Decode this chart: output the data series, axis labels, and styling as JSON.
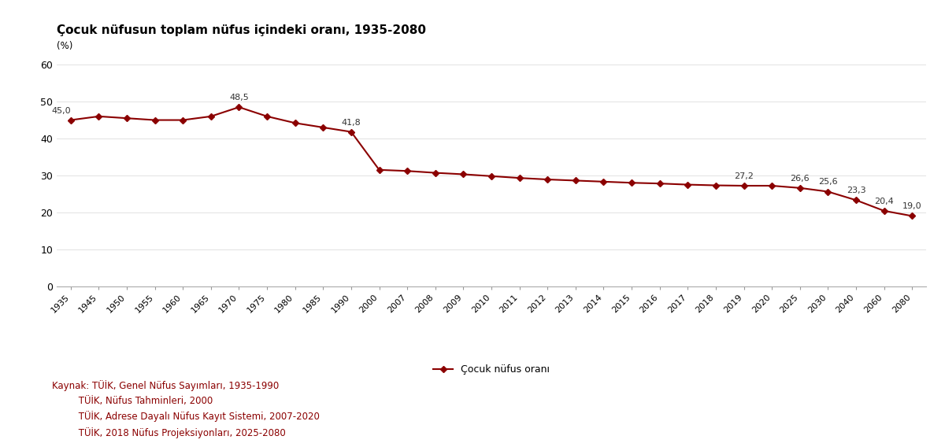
{
  "title": "Çocuk nüfusun toplam nüfus içindeki oranı, 1935-2080",
  "ylabel": "(%)",
  "legend_label": "Çocuk nüfus oranı",
  "line_color": "#8B0000",
  "marker": "D",
  "marker_size": 4,
  "years": [
    1935,
    1945,
    1950,
    1955,
    1960,
    1965,
    1970,
    1975,
    1980,
    1985,
    1990,
    2000,
    2007,
    2008,
    2009,
    2010,
    2011,
    2012,
    2013,
    2014,
    2015,
    2016,
    2017,
    2018,
    2019,
    2020,
    2025,
    2030,
    2040,
    2060,
    2080
  ],
  "values": [
    45.0,
    46.0,
    45.5,
    45.0,
    45.0,
    46.0,
    48.5,
    46.0,
    44.2,
    43.0,
    41.8,
    31.5,
    31.2,
    30.7,
    30.3,
    29.8,
    29.3,
    28.9,
    28.6,
    28.3,
    28.0,
    27.8,
    27.5,
    27.3,
    27.2,
    27.2,
    26.6,
    25.6,
    23.3,
    20.4,
    19.0
  ],
  "labeled_points": {
    "0": "45,0",
    "6": "48,5",
    "10": "41,8",
    "24": "27,2",
    "26": "26,6",
    "27": "25,6",
    "28": "23,3",
    "29": "20,4",
    "30": "19,0"
  },
  "ylim": [
    0,
    63
  ],
  "yticks": [
    0,
    10,
    20,
    30,
    40,
    50,
    60
  ],
  "source_line1": "Kaynak: TÜİK, Genel Nüfus Sayımları, 1935-1990",
  "source_line2": "         TÜİK, Nüfus Tahminleri, 2000",
  "source_line3": "         TÜİK, Adrese Dayalı Nüfus Kayıt Sistemi, 2007-2020",
  "source_line4": "         TÜİK, 2018 Nüfus Projeksiyonları, 2025-2080",
  "source_color": "#8B0000",
  "bg_color": "#FFFFFF",
  "title_fontsize": 11,
  "annotation_fontsize": 8,
  "tick_fontsize": 8,
  "ytick_fontsize": 9
}
